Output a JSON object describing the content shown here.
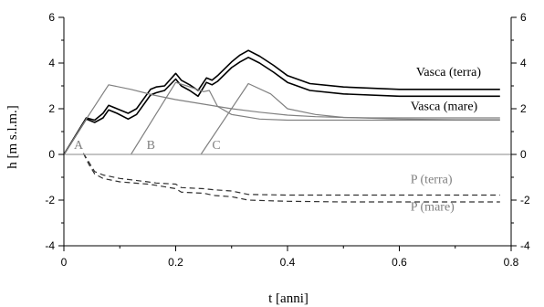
{
  "chart_data": {
    "type": "line",
    "xlabel": "t [anni]",
    "ylabel": "h [m s.l.m.]",
    "xlim": [
      0,
      0.8
    ],
    "ylim": [
      -4,
      6
    ],
    "xticks": [
      "0",
      "0.2",
      "0.4",
      "0.6",
      "0.8"
    ],
    "yticks_left": [
      "6",
      "4",
      "2",
      "0",
      "-2",
      "-4"
    ],
    "yticks_right": [
      "6",
      "4",
      "2",
      "0",
      "-2",
      "-4"
    ],
    "grid": false,
    "colors": {
      "dark": "#000000",
      "gray": "#808080",
      "baseline": "#a0a0a0"
    },
    "series": [
      {
        "name": "Vasca (terra)",
        "color": "#000000",
        "dash": "solid",
        "x": [
          0,
          0.04,
          0.055,
          0.07,
          0.08,
          0.095,
          0.115,
          0.13,
          0.155,
          0.165,
          0.18,
          0.2,
          0.21,
          0.225,
          0.24,
          0.255,
          0.265,
          0.275,
          0.3,
          0.315,
          0.33,
          0.35,
          0.375,
          0.4,
          0.44,
          0.5,
          0.6,
          0.7,
          0.78
        ],
        "y": [
          0,
          1.6,
          1.5,
          1.8,
          2.15,
          2.0,
          1.8,
          2.0,
          2.85,
          2.95,
          3.0,
          3.55,
          3.25,
          3.05,
          2.8,
          3.35,
          3.25,
          3.45,
          4.05,
          4.35,
          4.55,
          4.3,
          3.9,
          3.45,
          3.1,
          2.95,
          2.85,
          2.85,
          2.85
        ]
      },
      {
        "name": "Vasca (mare)",
        "color": "#000000",
        "dash": "solid",
        "x": [
          0,
          0.04,
          0.055,
          0.07,
          0.08,
          0.095,
          0.115,
          0.13,
          0.155,
          0.165,
          0.18,
          0.2,
          0.21,
          0.225,
          0.24,
          0.255,
          0.265,
          0.275,
          0.3,
          0.315,
          0.33,
          0.35,
          0.375,
          0.4,
          0.44,
          0.5,
          0.6,
          0.7,
          0.78
        ],
        "y": [
          0,
          1.55,
          1.4,
          1.6,
          1.95,
          1.8,
          1.55,
          1.75,
          2.6,
          2.7,
          2.8,
          3.3,
          3.0,
          2.8,
          2.55,
          3.15,
          3.05,
          3.2,
          3.8,
          4.05,
          4.25,
          4.0,
          3.6,
          3.15,
          2.8,
          2.65,
          2.55,
          2.55,
          2.55
        ]
      },
      {
        "name": "A",
        "color": "#808080",
        "dash": "solid",
        "x": [
          0,
          0.04,
          0.08,
          0.12,
          0.16,
          0.2,
          0.25,
          0.3,
          0.35,
          0.4,
          0.45,
          0.5,
          0.55,
          0.6,
          0.7,
          0.78
        ],
        "y": [
          0,
          1.55,
          3.05,
          2.85,
          2.6,
          2.4,
          2.2,
          2.0,
          1.85,
          1.72,
          1.65,
          1.62,
          1.6,
          1.6,
          1.6,
          1.6
        ]
      },
      {
        "name": "B",
        "color": "#808080",
        "dash": "solid",
        "x": [
          0.12,
          0.2,
          0.22,
          0.25,
          0.26,
          0.275,
          0.3,
          0.35,
          0.4,
          0.45,
          0.5,
          0.6,
          0.7,
          0.78
        ],
        "y": [
          0,
          3.15,
          3.0,
          2.75,
          2.8,
          2.1,
          1.75,
          1.55,
          1.5,
          1.5,
          1.5,
          1.5,
          1.5,
          1.5
        ]
      },
      {
        "name": "C",
        "color": "#808080",
        "dash": "solid",
        "x": [
          0.245,
          0.33,
          0.37,
          0.4,
          0.45,
          0.5,
          0.6,
          0.7,
          0.78
        ],
        "y": [
          0,
          3.1,
          2.65,
          2.0,
          1.75,
          1.62,
          1.55,
          1.52,
          1.52
        ]
      },
      {
        "name": "P (terra)",
        "color": "#303030",
        "dash": "dashed",
        "x": [
          0.035,
          0.045,
          0.055,
          0.07,
          0.1,
          0.15,
          0.165,
          0.2,
          0.21,
          0.25,
          0.27,
          0.3,
          0.33,
          0.4,
          0.5,
          0.6,
          0.7,
          0.78
        ],
        "y": [
          0.05,
          -0.35,
          -0.75,
          -0.9,
          -1.05,
          -1.2,
          -1.25,
          -1.3,
          -1.45,
          -1.5,
          -1.55,
          -1.6,
          -1.75,
          -1.78,
          -1.78,
          -1.78,
          -1.78,
          -1.78
        ]
      },
      {
        "name": "P (mare)",
        "color": "#303030",
        "dash": "dashed",
        "x": [
          0.035,
          0.045,
          0.055,
          0.07,
          0.1,
          0.15,
          0.165,
          0.2,
          0.21,
          0.25,
          0.27,
          0.3,
          0.33,
          0.4,
          0.5,
          0.6,
          0.7,
          0.78
        ],
        "y": [
          0.05,
          -0.45,
          -0.85,
          -1.05,
          -1.2,
          -1.3,
          -1.35,
          -1.5,
          -1.65,
          -1.7,
          -1.8,
          -1.85,
          -2.0,
          -2.05,
          -2.08,
          -2.08,
          -2.08,
          -2.08
        ]
      }
    ],
    "labels": [
      {
        "text": "Vasca (terra)",
        "x": 0.63,
        "y": 3.45,
        "color": "#000000"
      },
      {
        "text": "Vasca (mare)",
        "x": 0.62,
        "y": 1.95,
        "color": "#000000"
      },
      {
        "text": "A",
        "x": 0.018,
        "y": 0.25,
        "color": "#808080"
      },
      {
        "text": "B",
        "x": 0.148,
        "y": 0.25,
        "color": "#808080"
      },
      {
        "text": "C",
        "x": 0.265,
        "y": 0.25,
        "color": "#808080"
      },
      {
        "text": "P (terra)",
        "x": 0.62,
        "y": -1.25,
        "color": "#808080"
      },
      {
        "text": "P (mare)",
        "x": 0.62,
        "y": -2.45,
        "color": "#808080"
      }
    ]
  }
}
